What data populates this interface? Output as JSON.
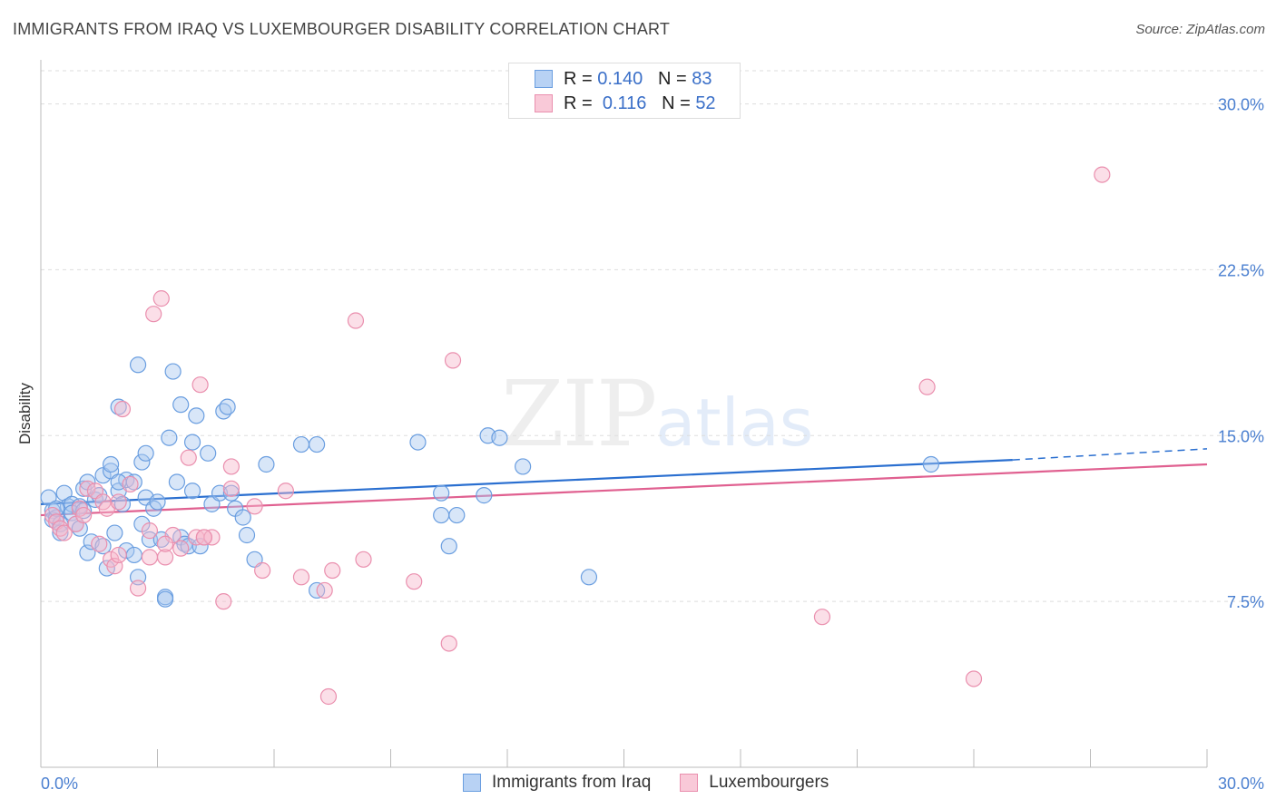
{
  "title": "IMMIGRANTS FROM IRAQ VS LUXEMBOURGER DISABILITY CORRELATION CHART",
  "source": "Source: ZipAtlas.com",
  "watermark": {
    "zip": "ZIP",
    "atlas": "atlas"
  },
  "legend": {
    "rows": [
      {
        "r_label": "R =",
        "r_value": "0.140",
        "n_label": "N =",
        "n_value": "83"
      },
      {
        "r_label": "R =",
        "r_value": "0.116",
        "n_label": "N =",
        "n_value": "52"
      }
    ]
  },
  "bottom_legend": [
    "Immigrants from Iraq",
    "Luxembourgers"
  ],
  "colors": {
    "blue_fill": "#a8c8f0",
    "blue_stroke": "#6a9ee0",
    "blue_line": "#2a6fd0",
    "pink_fill": "#f6b8cc",
    "pink_stroke": "#ea8fae",
    "pink_line": "#e06090",
    "tick_label": "#4a7fd0",
    "grid": "#dddddd"
  },
  "chart_data": {
    "type": "scatter",
    "title": "IMMIGRANTS FROM IRAQ VS LUXEMBOURGER DISABILITY CORRELATION CHART",
    "xlabel": "",
    "ylabel": "Disability",
    "xlim": [
      0,
      30
    ],
    "ylim": [
      0,
      31.5
    ],
    "yticks": [
      7.5,
      15.0,
      22.5,
      30.0
    ],
    "ytick_labels": [
      "7.5%",
      "15.0%",
      "22.5%",
      "30.0%"
    ],
    "xtick_labels": [
      "0.0%",
      "30.0%"
    ],
    "series": [
      {
        "name": "Immigrants from Iraq",
        "r": 0.14,
        "n": 83,
        "trend": {
          "x0": 0,
          "y0": 11.9,
          "x1": 25.0,
          "y1": 13.9,
          "dash_to_x": 30.0,
          "dash_to_y": 14.4
        },
        "points": [
          [
            0.2,
            12.2
          ],
          [
            0.3,
            11.6
          ],
          [
            0.3,
            11.2
          ],
          [
            0.4,
            11.3
          ],
          [
            0.5,
            11.0
          ],
          [
            0.5,
            10.6
          ],
          [
            0.6,
            12.4
          ],
          [
            0.7,
            11.8
          ],
          [
            0.8,
            11.9
          ],
          [
            0.8,
            11.5
          ],
          [
            0.9,
            11.0
          ],
          [
            1.0,
            11.8
          ],
          [
            1.0,
            10.8
          ],
          [
            1.1,
            12.6
          ],
          [
            1.2,
            12.9
          ],
          [
            1.2,
            9.7
          ],
          [
            1.3,
            10.2
          ],
          [
            1.4,
            12.1
          ],
          [
            1.5,
            12.3
          ],
          [
            1.6,
            10.0
          ],
          [
            1.6,
            13.2
          ],
          [
            1.7,
            9.0
          ],
          [
            1.8,
            13.4
          ],
          [
            1.8,
            13.7
          ],
          [
            1.9,
            10.6
          ],
          [
            2.0,
            16.3
          ],
          [
            2.0,
            12.5
          ],
          [
            2.1,
            11.9
          ],
          [
            2.2,
            9.8
          ],
          [
            2.2,
            13.0
          ],
          [
            2.4,
            9.6
          ],
          [
            2.4,
            12.9
          ],
          [
            2.5,
            8.6
          ],
          [
            2.5,
            18.2
          ],
          [
            2.6,
            13.8
          ],
          [
            2.6,
            11.0
          ],
          [
            2.7,
            14.2
          ],
          [
            2.7,
            12.2
          ],
          [
            2.8,
            10.3
          ],
          [
            2.9,
            11.7
          ],
          [
            3.0,
            12.0
          ],
          [
            3.1,
            10.3
          ],
          [
            3.2,
            7.7
          ],
          [
            3.2,
            7.6
          ],
          [
            3.3,
            14.9
          ],
          [
            3.4,
            17.9
          ],
          [
            3.5,
            12.9
          ],
          [
            3.6,
            10.4
          ],
          [
            3.6,
            16.4
          ],
          [
            3.7,
            10.1
          ],
          [
            3.8,
            10.0
          ],
          [
            3.9,
            14.7
          ],
          [
            4.0,
            15.9
          ],
          [
            4.1,
            10.0
          ],
          [
            4.3,
            14.2
          ],
          [
            4.4,
            11.9
          ],
          [
            4.6,
            12.4
          ],
          [
            4.7,
            16.1
          ],
          [
            4.8,
            16.3
          ],
          [
            5.0,
            11.7
          ],
          [
            5.2,
            11.3
          ],
          [
            5.3,
            10.5
          ],
          [
            5.5,
            9.4
          ],
          [
            5.8,
            13.7
          ],
          [
            6.7,
            14.6
          ],
          [
            7.1,
            14.6
          ],
          [
            7.1,
            8.0
          ],
          [
            9.7,
            14.7
          ],
          [
            10.3,
            11.4
          ],
          [
            10.3,
            12.4
          ],
          [
            10.5,
            10.0
          ],
          [
            10.7,
            11.4
          ],
          [
            11.4,
            12.3
          ],
          [
            11.5,
            15.0
          ],
          [
            11.8,
            14.9
          ],
          [
            12.4,
            13.6
          ],
          [
            14.1,
            8.6
          ],
          [
            22.9,
            13.7
          ],
          [
            1.1,
            11.6
          ],
          [
            0.4,
            11.7
          ],
          [
            2.0,
            12.9
          ],
          [
            3.9,
            12.5
          ],
          [
            4.9,
            12.4
          ]
        ]
      },
      {
        "name": "Luxembourgers",
        "r": 0.116,
        "n": 52,
        "trend": {
          "x0": 0,
          "y0": 11.4,
          "x1": 30.0,
          "y1": 13.7
        },
        "points": [
          [
            0.3,
            11.4
          ],
          [
            0.4,
            11.1
          ],
          [
            0.5,
            10.8
          ],
          [
            0.6,
            10.6
          ],
          [
            0.9,
            11.0
          ],
          [
            1.0,
            11.7
          ],
          [
            1.1,
            11.4
          ],
          [
            1.2,
            12.6
          ],
          [
            1.4,
            12.5
          ],
          [
            1.5,
            10.1
          ],
          [
            1.6,
            12.0
          ],
          [
            1.7,
            11.7
          ],
          [
            1.8,
            9.4
          ],
          [
            1.9,
            9.1
          ],
          [
            2.0,
            12.0
          ],
          [
            2.1,
            16.2
          ],
          [
            2.3,
            12.8
          ],
          [
            2.5,
            8.1
          ],
          [
            2.8,
            10.7
          ],
          [
            2.8,
            9.5
          ],
          [
            2.9,
            20.5
          ],
          [
            3.1,
            21.2
          ],
          [
            3.2,
            9.5
          ],
          [
            3.4,
            10.5
          ],
          [
            3.6,
            9.9
          ],
          [
            3.8,
            14.0
          ],
          [
            4.0,
            10.4
          ],
          [
            4.1,
            17.3
          ],
          [
            4.2,
            10.4
          ],
          [
            4.4,
            10.4
          ],
          [
            4.7,
            7.5
          ],
          [
            4.9,
            13.6
          ],
          [
            4.9,
            12.6
          ],
          [
            5.5,
            11.8
          ],
          [
            5.7,
            8.9
          ],
          [
            6.3,
            12.5
          ],
          [
            6.7,
            8.6
          ],
          [
            7.3,
            8.0
          ],
          [
            7.4,
            3.2
          ],
          [
            7.5,
            8.9
          ],
          [
            8.1,
            20.2
          ],
          [
            8.3,
            9.4
          ],
          [
            9.6,
            8.4
          ],
          [
            10.5,
            5.6
          ],
          [
            10.6,
            18.4
          ],
          [
            20.1,
            6.8
          ],
          [
            22.8,
            17.2
          ],
          [
            24.0,
            4.0
          ],
          [
            27.3,
            26.8
          ],
          [
            4.2,
            10.4
          ],
          [
            3.2,
            10.1
          ],
          [
            2.0,
            9.6
          ]
        ]
      }
    ]
  }
}
